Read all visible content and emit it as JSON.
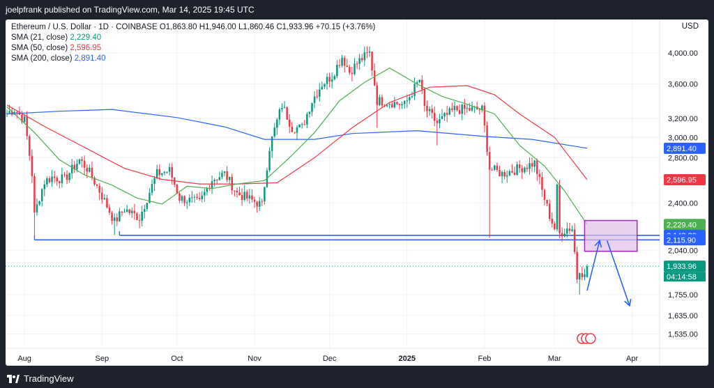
{
  "header": {
    "published_by": "joelpfrank published on TradingView.com, Mar 14, 2025 19:45 UTC"
  },
  "legend": {
    "symbol": "Ethereum / U.S. Dollar · 1D · COINBASE",
    "ohlc": "O1,863.80 H1,946.00 L1,860.46 C1,933.96 +70.15 (+3.76%)",
    "sma21_label": "SMA (21, close)",
    "sma21_value": "2,229.40",
    "sma50_label": "SMA (50, close)",
    "sma50_value": "2,596.95",
    "sma200_label": "SMA (200, close)",
    "sma200_value": "2,891.40"
  },
  "currency": "USD",
  "footer": {
    "brand": "TradingView"
  },
  "colors": {
    "up": "#089981",
    "down": "#f23645",
    "sma21": "#4caf50",
    "sma50": "#f23645",
    "sma200": "#2962ff",
    "annotation": "#2962ff",
    "box_fill": "#e1bee7",
    "box_border": "#9c27b0"
  },
  "chart_data": {
    "type": "candlestick",
    "log_scale": true,
    "ylim": [
      1490,
      4400
    ],
    "y_ticks": [
      {
        "value": 4000,
        "label": "4,000.00"
      },
      {
        "value": 3600,
        "label": "3,600.00"
      },
      {
        "value": 3200,
        "label": "3,200.00"
      },
      {
        "value": 3000,
        "label": "3,000.00"
      },
      {
        "value": 2800,
        "label": "2,800.00"
      },
      {
        "value": 2400,
        "label": "2,400.00"
      },
      {
        "value": 2040,
        "label": "2,040.00"
      },
      {
        "value": 1755,
        "label": "1,755.00"
      },
      {
        "value": 1635,
        "label": "1,635.00"
      },
      {
        "value": 1535,
        "label": "1,535.00"
      }
    ],
    "x_range": [
      "2024-07-25",
      "2025-04-12"
    ],
    "x_ticks": [
      {
        "date": "2024-08-01",
        "label": "Aug"
      },
      {
        "date": "2024-09-01",
        "label": "Sep"
      },
      {
        "date": "2024-10-01",
        "label": "Oct"
      },
      {
        "date": "2024-11-01",
        "label": "Nov"
      },
      {
        "date": "2024-12-01",
        "label": "Dec"
      },
      {
        "date": "2025-01-01",
        "label": "2025"
      },
      {
        "date": "2025-02-01",
        "label": "Feb"
      },
      {
        "date": "2025-03-01",
        "label": "Mar"
      },
      {
        "date": "2025-04-01",
        "label": "Apr"
      }
    ],
    "price_anchors": [
      [
        "2024-07-25",
        3260
      ],
      [
        "2024-07-28",
        3300
      ],
      [
        "2024-08-01",
        3180
      ],
      [
        "2024-08-04",
        2650
      ],
      [
        "2024-08-05",
        2300
      ],
      [
        "2024-08-07",
        2450
      ],
      [
        "2024-08-09",
        2580
      ],
      [
        "2024-08-12",
        2620
      ],
      [
        "2024-08-17",
        2600
      ],
      [
        "2024-08-23",
        2780
      ],
      [
        "2024-08-26",
        2700
      ],
      [
        "2024-08-31",
        2500
      ],
      [
        "2024-09-06",
        2250
      ],
      [
        "2024-09-10",
        2350
      ],
      [
        "2024-09-16",
        2280
      ],
      [
        "2024-09-23",
        2650
      ],
      [
        "2024-09-28",
        2680
      ],
      [
        "2024-10-02",
        2440
      ],
      [
        "2024-10-10",
        2400
      ],
      [
        "2024-10-15",
        2600
      ],
      [
        "2024-10-20",
        2650
      ],
      [
        "2024-10-25",
        2480
      ],
      [
        "2024-11-04",
        2380
      ],
      [
        "2024-11-07",
        2900
      ],
      [
        "2024-11-12",
        3350
      ],
      [
        "2024-11-16",
        3100
      ],
      [
        "2024-11-20",
        3100
      ],
      [
        "2024-11-24",
        3400
      ],
      [
        "2024-11-28",
        3600
      ],
      [
        "2024-12-02",
        3700
      ],
      [
        "2024-12-06",
        3950
      ],
      [
        "2024-12-09",
        3750
      ],
      [
        "2024-12-13",
        3900
      ],
      [
        "2024-12-17",
        4000
      ],
      [
        "2024-12-20",
        3400
      ],
      [
        "2024-12-26",
        3380
      ],
      [
        "2024-12-31",
        3350
      ],
      [
        "2025-01-06",
        3650
      ],
      [
        "2025-01-08",
        3320
      ],
      [
        "2025-01-13",
        3150
      ],
      [
        "2025-01-20",
        3300
      ],
      [
        "2025-01-26",
        3300
      ],
      [
        "2025-01-31",
        3300
      ],
      [
        "2025-02-03",
        2700
      ],
      [
        "2025-02-08",
        2650
      ],
      [
        "2025-02-15",
        2700
      ],
      [
        "2025-02-21",
        2750
      ],
      [
        "2025-02-24",
        2500
      ],
      [
        "2025-02-27",
        2300
      ],
      [
        "2025-03-01",
        2200
      ],
      [
        "2025-03-02",
        2520
      ],
      [
        "2025-03-03",
        2160
      ],
      [
        "2025-03-06",
        2200
      ],
      [
        "2025-03-08",
        2200
      ],
      [
        "2025-03-10",
        1860
      ],
      [
        "2025-03-11",
        1920
      ],
      [
        "2025-03-13",
        1865
      ],
      [
        "2025-03-14",
        1934
      ]
    ],
    "last_candle": {
      "date": "2025-03-14",
      "open": 1863.8,
      "high": 1946.0,
      "low": 1860.46,
      "close": 1933.96
    },
    "sma21": [
      [
        "2024-07-25",
        3330
      ],
      [
        "2024-08-05",
        3050
      ],
      [
        "2024-08-15",
        2780
      ],
      [
        "2024-08-25",
        2640
      ],
      [
        "2024-09-05",
        2550
      ],
      [
        "2024-09-15",
        2440
      ],
      [
        "2024-09-25",
        2390
      ],
      [
        "2024-10-05",
        2540
      ],
      [
        "2024-10-15",
        2520
      ],
      [
        "2024-10-25",
        2560
      ],
      [
        "2024-11-05",
        2590
      ],
      [
        "2024-11-15",
        2800
      ],
      [
        "2024-11-25",
        3050
      ],
      [
        "2024-12-05",
        3400
      ],
      [
        "2024-12-15",
        3620
      ],
      [
        "2024-12-25",
        3800
      ],
      [
        "2025-01-05",
        3600
      ],
      [
        "2025-01-15",
        3450
      ],
      [
        "2025-01-25",
        3360
      ],
      [
        "2025-02-05",
        3250
      ],
      [
        "2025-02-15",
        2920
      ],
      [
        "2025-02-25",
        2720
      ],
      [
        "2025-03-05",
        2500
      ],
      [
        "2025-03-14",
        2229.4
      ]
    ],
    "sma50": [
      [
        "2024-07-25",
        3350
      ],
      [
        "2024-08-10",
        3100
      ],
      [
        "2024-08-25",
        2900
      ],
      [
        "2024-09-10",
        2700
      ],
      [
        "2024-09-25",
        2600
      ],
      [
        "2024-10-10",
        2560
      ],
      [
        "2024-10-25",
        2560
      ],
      [
        "2024-11-10",
        2570
      ],
      [
        "2024-11-25",
        2800
      ],
      [
        "2024-12-10",
        3100
      ],
      [
        "2024-12-25",
        3380
      ],
      [
        "2025-01-10",
        3560
      ],
      [
        "2025-01-25",
        3580
      ],
      [
        "2025-02-05",
        3470
      ],
      [
        "2025-02-15",
        3250
      ],
      [
        "2025-03-01",
        3000
      ],
      [
        "2025-03-14",
        2596.95
      ]
    ],
    "sma200": [
      [
        "2024-07-25",
        3250
      ],
      [
        "2024-08-15",
        3280
      ],
      [
        "2024-09-05",
        3300
      ],
      [
        "2024-10-01",
        3210
      ],
      [
        "2024-10-20",
        3110
      ],
      [
        "2024-11-05",
        2980
      ],
      [
        "2024-11-25",
        2980
      ],
      [
        "2024-12-10",
        3040
      ],
      [
        "2025-01-05",
        3070
      ],
      [
        "2025-02-01",
        3010
      ],
      [
        "2025-02-20",
        2980
      ],
      [
        "2025-03-14",
        2891.4
      ]
    ],
    "price_labels": [
      {
        "label": "2,891.40",
        "value": 2891.4,
        "bg": "#2962ff",
        "fg": "#ffffff"
      },
      {
        "label": "2,596.95",
        "value": 2596.95,
        "bg": "#f23645",
        "fg": "#ffffff"
      },
      {
        "label": "2,229.40",
        "value": 2229.4,
        "bg": "#4caf50",
        "fg": "#ffffff"
      },
      {
        "label": "2,148.89",
        "value": 2148.89,
        "bg": "#2962ff",
        "fg": "#ffffff"
      },
      {
        "label": "2,115.90",
        "value": 2115.9,
        "bg": "#2962ff",
        "fg": "#ffffff"
      },
      {
        "label": "1,933.96",
        "value": 1933.96,
        "bg": "#089981",
        "fg": "#ffffff"
      }
    ],
    "countdown": "04:14:58",
    "horizontal_lines": [
      {
        "value": 2148.89,
        "from": "2024-09-08"
      },
      {
        "value": 2115.9,
        "from": "2024-08-05"
      }
    ],
    "zone_box": {
      "from": "2025-03-13",
      "to": "2025-04-03",
      "low": 2035,
      "high": 2260
    },
    "arrows": [
      {
        "points": [
          [
            "2025-03-14",
            1780
          ],
          [
            "2025-03-19",
            2110
          ]
        ]
      },
      {
        "points": [
          [
            "2025-03-22",
            2110
          ],
          [
            "2025-03-31",
            1690
          ]
        ]
      }
    ]
  }
}
